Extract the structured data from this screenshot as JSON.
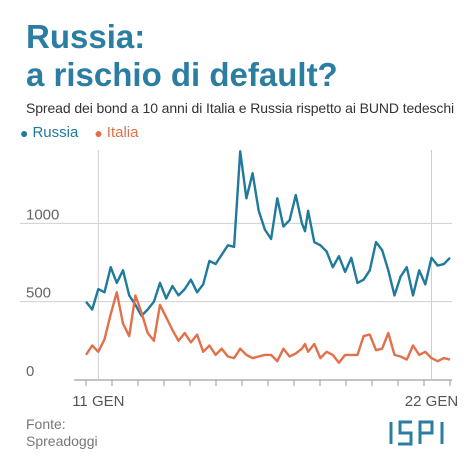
{
  "title_line1": "Russia:",
  "title_line2": "a rischio di default?",
  "subtitle": "Spread dei bond a 10 anni di Italia e Russia rispetto ai BUND tedeschi",
  "source_label": "Fonte:",
  "source_name": "Spreadoggi",
  "logo_text": "ISPI",
  "colors": {
    "title": "#2b7ea1",
    "russia": "#1f7a9c",
    "italia": "#e2704a",
    "grid": "#cfcfcf"
  },
  "chart_data": {
    "type": "line",
    "x": [
      1,
      2,
      3,
      4,
      5,
      6,
      7,
      8,
      9,
      10,
      11,
      12,
      13,
      14,
      15,
      16,
      17,
      18,
      19,
      20,
      21,
      22,
      23,
      24,
      25,
      26,
      27,
      28,
      29,
      30,
      31,
      32,
      33,
      34,
      35,
      36,
      36.5,
      37,
      38,
      39,
      40,
      41,
      42,
      43,
      44,
      45,
      46,
      47,
      48,
      49,
      50,
      51,
      52,
      53,
      54,
      55,
      56,
      57,
      58,
      59,
      60
    ],
    "x_tick_labels": [
      {
        "x": 3,
        "label": "11 GEN"
      },
      {
        "x": 57,
        "label": "22 GEN"
      }
    ],
    "ylim": [
      0,
      1500
    ],
    "y_ticks": [
      0,
      500,
      1000
    ],
    "legend": [
      "Russia",
      "Italia"
    ],
    "series": [
      {
        "name": "Russia",
        "values": [
          500,
          450,
          580,
          560,
          720,
          620,
          700,
          540,
          480,
          410,
          450,
          500,
          620,
          520,
          600,
          540,
          580,
          640,
          560,
          610,
          760,
          740,
          800,
          860,
          850,
          1460,
          1160,
          1320,
          1080,
          960,
          900,
          1160,
          980,
          1020,
          1180,
          1000,
          950,
          1080,
          880,
          860,
          820,
          720,
          790,
          690,
          780,
          620,
          640,
          700,
          880,
          830,
          700,
          540,
          660,
          720,
          540,
          700,
          610,
          780,
          730,
          740,
          780
        ],
        "color": "#1f7a9c"
      },
      {
        "name": "Italia",
        "values": [
          160,
          220,
          180,
          260,
          420,
          560,
          360,
          280,
          540,
          430,
          300,
          250,
          480,
          400,
          320,
          250,
          300,
          240,
          290,
          180,
          220,
          160,
          200,
          150,
          140,
          200,
          160,
          140,
          150,
          160,
          160,
          120,
          200,
          150,
          170,
          200,
          230,
          180,
          230,
          140,
          180,
          160,
          110,
          160,
          160,
          160,
          280,
          290,
          190,
          200,
          300,
          160,
          150,
          130,
          220,
          160,
          180,
          140,
          120,
          140,
          130
        ],
        "color": "#e2704a"
      }
    ]
  }
}
